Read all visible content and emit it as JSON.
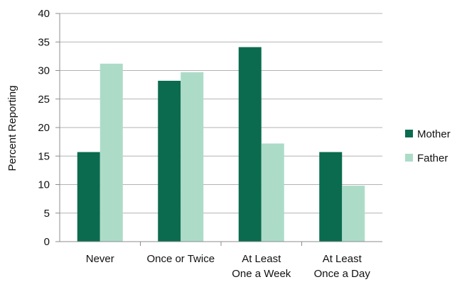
{
  "chart_data": {
    "type": "bar",
    "title": "",
    "xlabel": "",
    "ylabel": "Percent Reporting",
    "ylim": [
      0,
      40
    ],
    "y_ticks": [
      "0",
      "5",
      "10",
      "15",
      "20",
      "25",
      "30",
      "35",
      "40"
    ],
    "grid": true,
    "legend_position": "right",
    "categories": [
      [
        "Never"
      ],
      [
        "Once or Twice"
      ],
      [
        "At Least",
        "One a  Week"
      ],
      [
        "At Least",
        "Once a Day"
      ]
    ],
    "series": [
      {
        "name": "Mother",
        "color": "#0b6b4f",
        "values": [
          15.7,
          28.2,
          34.1,
          15.7
        ]
      },
      {
        "name": "Father",
        "color": "#acdcc8",
        "values": [
          31.2,
          29.7,
          17.2,
          9.8
        ]
      }
    ]
  }
}
